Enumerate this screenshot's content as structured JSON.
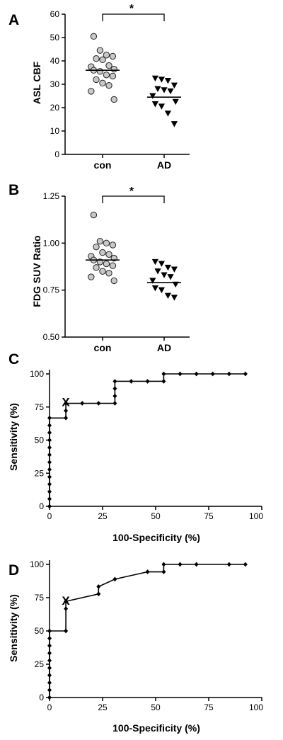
{
  "chart_data": [
    {
      "type": "scatter",
      "panel_label": "A",
      "ylabel": "ASL CBF",
      "ylim": [
        0,
        60
      ],
      "yticks": [
        0,
        10,
        20,
        30,
        40,
        50,
        60
      ],
      "categories": [
        "con",
        "AD"
      ],
      "significance": "*",
      "series": [
        {
          "category": "con",
          "marker": "circle",
          "mean": 36,
          "values": [
            50.5,
            44.5,
            42.5,
            42,
            41,
            40.5,
            38,
            37.5,
            36.5,
            36,
            35.5,
            34,
            33.5,
            32,
            30.5,
            29.5,
            27,
            23.5
          ]
        },
        {
          "category": "AD",
          "marker": "triangle-down",
          "mean": 24.5,
          "values": [
            32.5,
            32,
            31.5,
            29.5,
            28,
            27.5,
            27,
            25,
            22.5,
            21.5,
            20.5,
            17.5,
            13
          ]
        }
      ]
    },
    {
      "type": "scatter",
      "panel_label": "B",
      "ylabel": "FDG SUV Ratio",
      "ylim": [
        0.5,
        1.25
      ],
      "yticks": [
        0.5,
        0.75,
        1.0,
        1.25
      ],
      "ytick_labels": [
        "0.50",
        "0.75",
        "1.00",
        "1.25"
      ],
      "categories": [
        "con",
        "AD"
      ],
      "significance": "*",
      "series": [
        {
          "category": "con",
          "marker": "circle",
          "mean": 0.91,
          "values": [
            1.15,
            1.01,
            1.0,
            0.99,
            0.98,
            0.95,
            0.94,
            0.93,
            0.92,
            0.91,
            0.9,
            0.89,
            0.88,
            0.87,
            0.85,
            0.84,
            0.82,
            0.8
          ]
        },
        {
          "category": "AD",
          "marker": "triangle-down",
          "mean": 0.79,
          "values": [
            0.9,
            0.89,
            0.87,
            0.86,
            0.85,
            0.83,
            0.82,
            0.8,
            0.78,
            0.76,
            0.75,
            0.72,
            0.71
          ]
        }
      ]
    },
    {
      "type": "line",
      "panel_label": "C",
      "xlabel": "100-Specificity (%)",
      "ylabel": "Sensitivity (%)",
      "xlim": [
        0,
        100
      ],
      "ylim": [
        0,
        100
      ],
      "xticks": [
        0,
        25,
        50,
        75,
        100
      ],
      "yticks": [
        0,
        25,
        50,
        75,
        100
      ],
      "xtick_labels": [
        "0",
        "25",
        "50",
        "75",
        "100"
      ],
      "cutoff_marker": "X",
      "cutoff_point": [
        7.7,
        79
      ],
      "x": [
        0,
        0,
        0,
        0,
        0,
        0,
        0,
        0,
        0,
        0,
        0,
        0,
        0,
        7.7,
        7.7,
        7.7,
        7.7,
        15.4,
        23.1,
        30.8,
        30.8,
        30.8,
        30.8,
        38.5,
        46.2,
        53.8,
        53.8,
        61.5,
        69.2,
        76.9,
        84.6,
        92.3
      ],
      "y": [
        0,
        5.6,
        11.1,
        16.7,
        22.2,
        27.8,
        33.3,
        38.9,
        44.4,
        50,
        55.6,
        61.1,
        66.7,
        66.7,
        72.2,
        77.8,
        79,
        77.8,
        77.8,
        77.8,
        83.3,
        88.9,
        94.4,
        94.4,
        94.4,
        94.4,
        100,
        100,
        100,
        100,
        100,
        100
      ]
    },
    {
      "type": "line",
      "panel_label": "D",
      "xlabel": "100-Specificity (%)",
      "ylabel": "Sensitivity (%)",
      "xlim": [
        0,
        100
      ],
      "ylim": [
        0,
        100
      ],
      "xticks": [
        0,
        25,
        50,
        75,
        100
      ],
      "yticks": [
        0,
        25,
        50,
        75,
        100
      ],
      "xtick_labels": [
        "0",
        "25",
        "50",
        "75",
        "100"
      ],
      "cutoff_marker": "X",
      "cutoff_point": [
        7.7,
        73
      ],
      "x": [
        0,
        0,
        0,
        0,
        0,
        0,
        0,
        0,
        0,
        0,
        7.7,
        7.7,
        7.7,
        23.1,
        23.1,
        30.8,
        46.2,
        53.8,
        53.8,
        61.5,
        69.2,
        84.6,
        92.3
      ],
      "y": [
        0,
        5.6,
        11.1,
        16.7,
        22.2,
        27.8,
        33.3,
        38.9,
        44.4,
        50,
        50,
        66.7,
        72.2,
        77.8,
        83.3,
        88.9,
        94.4,
        94.4,
        100,
        100,
        100,
        100,
        100
      ]
    }
  ]
}
